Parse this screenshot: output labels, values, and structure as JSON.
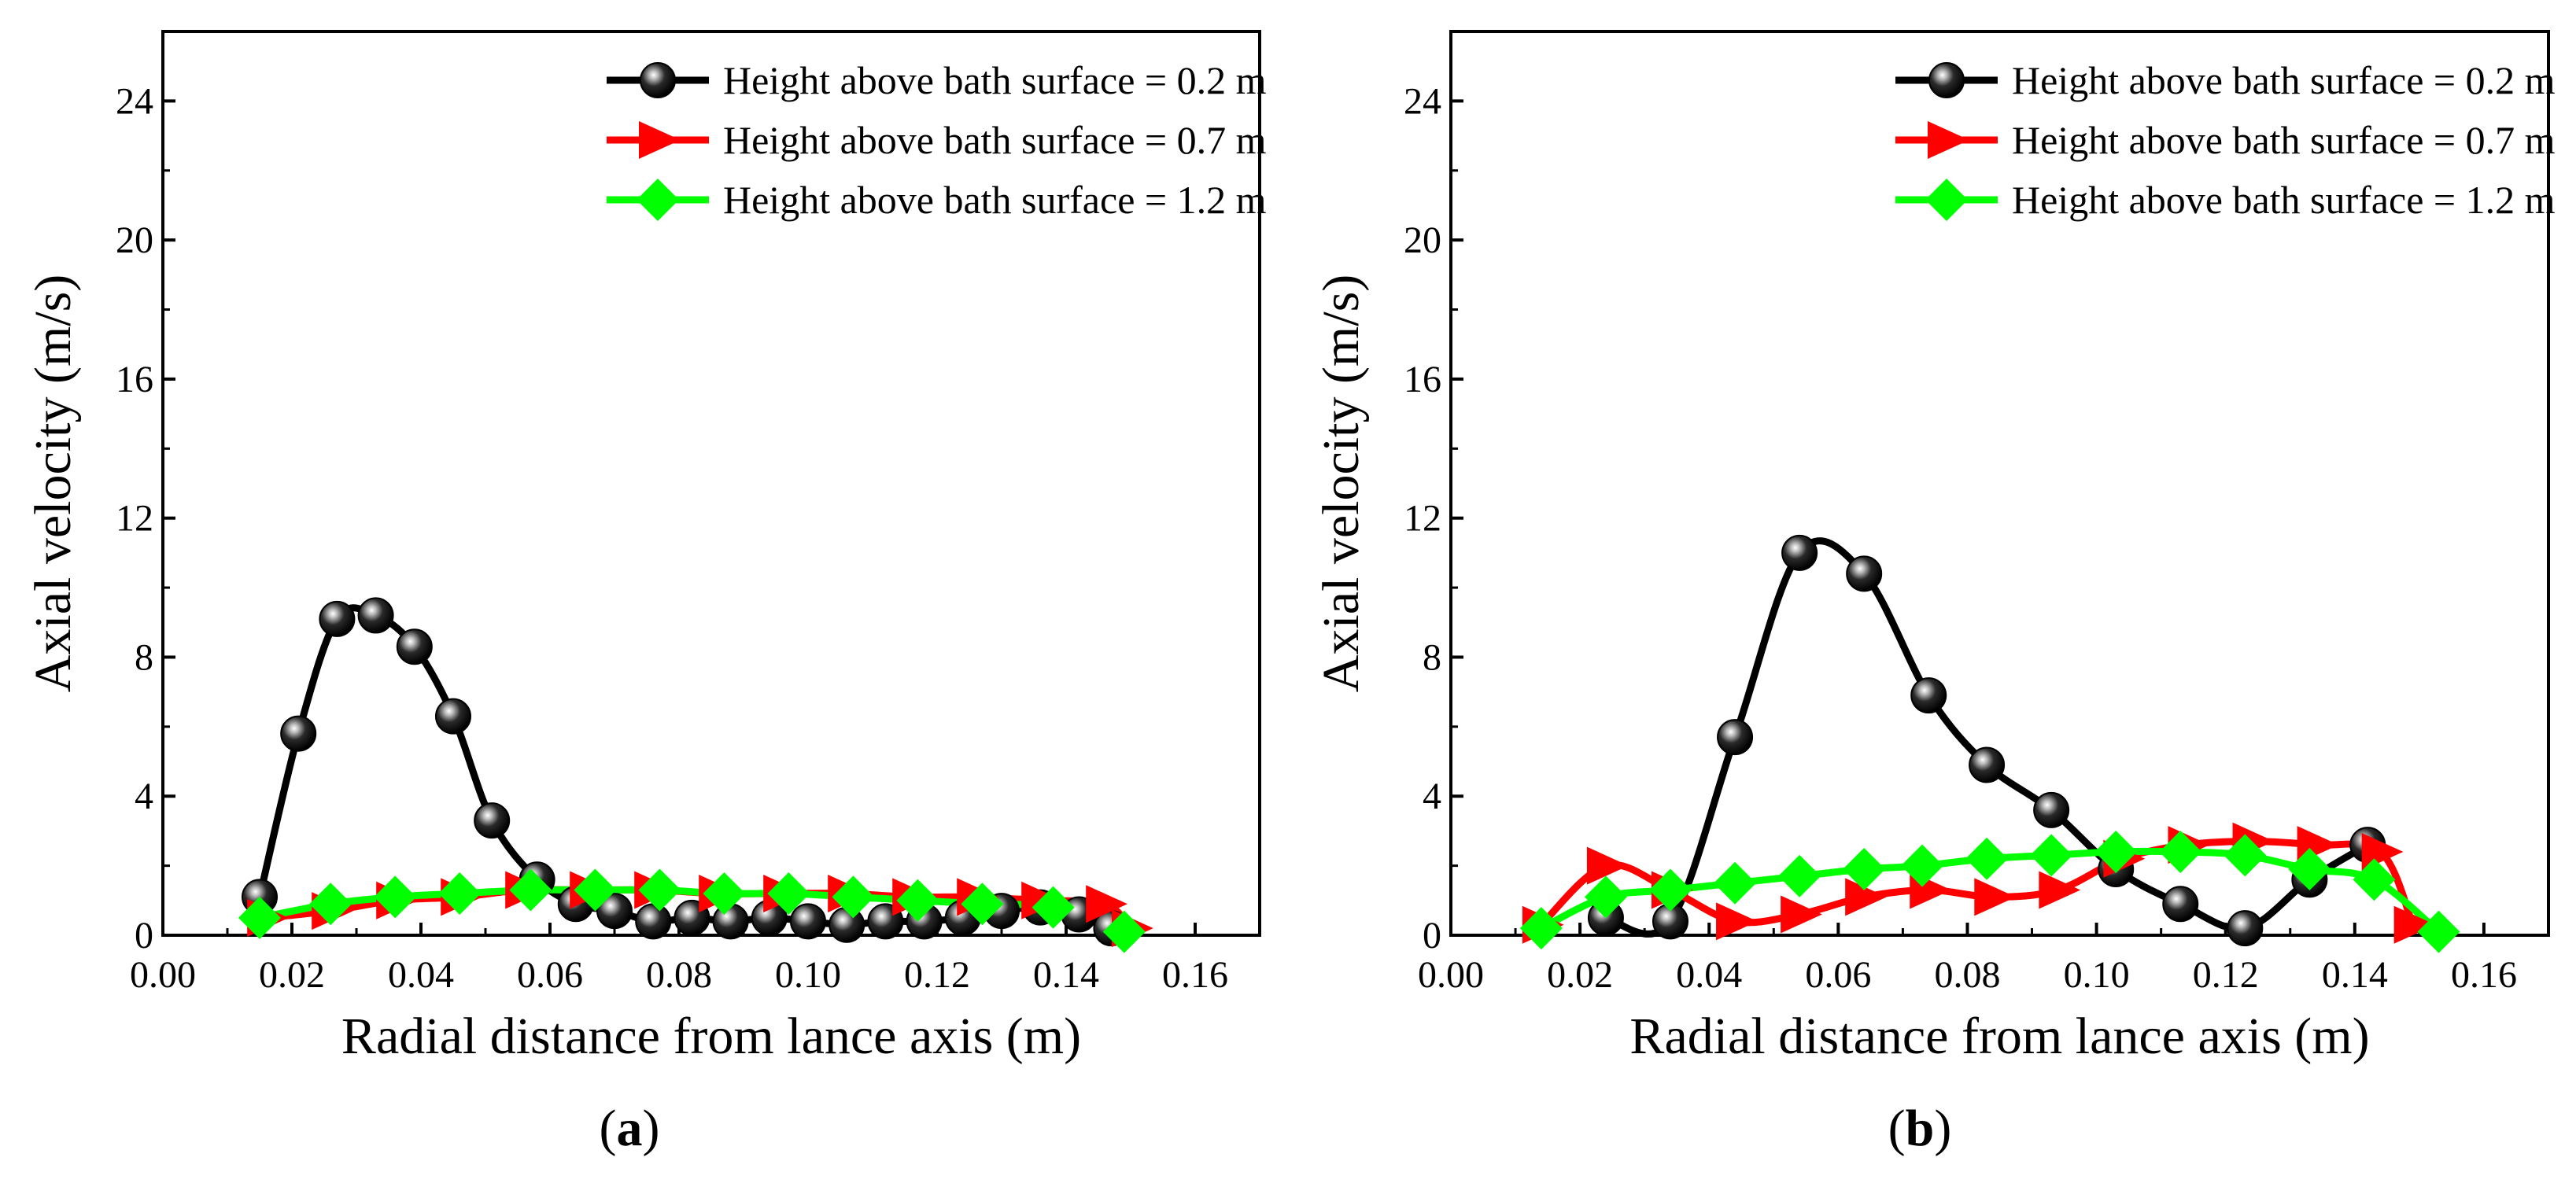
{
  "colors": {
    "series_0.2": "#000000",
    "series_0.7": "#ff0000",
    "series_1.2": "#00ff00",
    "axes": "#000000",
    "background": "#ffffff"
  },
  "chart_data": [
    {
      "type": "line",
      "panel_label": "a",
      "xlabel": "Radial distance from lance axis (m)",
      "ylabel": "Axial velocity (m/s)",
      "xlim": [
        0.0,
        0.17
      ],
      "ylim": [
        0,
        26
      ],
      "xticks": [
        "0.00",
        "0.02",
        "0.04",
        "0.06",
        "0.08",
        "0.10",
        "0.12",
        "0.14",
        "0.16"
      ],
      "yticks": [
        "0",
        "4",
        "8",
        "12",
        "16",
        "20",
        "24"
      ],
      "legend_position": "top-right",
      "grid": false,
      "series": [
        {
          "name": "Height above bath surface = 0.2 m",
          "marker": "sphere",
          "x": [
            0.015,
            0.021,
            0.027,
            0.033,
            0.039,
            0.045,
            0.051,
            0.058,
            0.064,
            0.07,
            0.076,
            0.082,
            0.088,
            0.094,
            0.1,
            0.106,
            0.112,
            0.118,
            0.124,
            0.13,
            0.136,
            0.142,
            0.147
          ],
          "y": [
            1.1,
            5.8,
            9.1,
            9.2,
            8.3,
            6.3,
            3.3,
            1.6,
            0.9,
            0.7,
            0.4,
            0.5,
            0.4,
            0.5,
            0.4,
            0.3,
            0.4,
            0.4,
            0.5,
            0.7,
            0.8,
            0.6,
            0.2
          ]
        },
        {
          "name": "Height above bath surface = 0.7 m",
          "marker": "triangle-right",
          "x": [
            0.016,
            0.026,
            0.036,
            0.046,
            0.056,
            0.066,
            0.076,
            0.086,
            0.096,
            0.106,
            0.116,
            0.126,
            0.136,
            0.146,
            0.15
          ],
          "y": [
            0.5,
            0.7,
            1.0,
            1.1,
            1.3,
            1.3,
            1.3,
            1.2,
            1.2,
            1.2,
            1.1,
            1.1,
            1.0,
            0.9,
            0.2
          ]
        },
        {
          "name": "Height above bath surface = 1.2 m",
          "marker": "diamond",
          "x": [
            0.015,
            0.026,
            0.036,
            0.046,
            0.057,
            0.067,
            0.077,
            0.087,
            0.097,
            0.107,
            0.117,
            0.127,
            0.138,
            0.149
          ],
          "y": [
            0.5,
            0.9,
            1.1,
            1.2,
            1.3,
            1.3,
            1.3,
            1.2,
            1.2,
            1.1,
            1.0,
            0.9,
            0.8,
            0.1
          ]
        }
      ]
    },
    {
      "type": "line",
      "panel_label": "b",
      "xlabel": "Radial distance from lance axis (m)",
      "ylabel": "Axial velocity (m/s)",
      "xlim": [
        0.0,
        0.17
      ],
      "ylim": [
        0,
        26
      ],
      "xticks": [
        "0.00",
        "0.02",
        "0.04",
        "0.06",
        "0.08",
        "0.10",
        "0.12",
        "0.14",
        "0.16"
      ],
      "yticks": [
        "0",
        "4",
        "8",
        "12",
        "16",
        "20",
        "24"
      ],
      "legend_position": "top-right",
      "grid": false,
      "series": [
        {
          "name": "Height above bath surface = 0.2 m",
          "marker": "sphere",
          "x": [
            0.024,
            0.034,
            0.044,
            0.054,
            0.064,
            0.074,
            0.083,
            0.093,
            0.103,
            0.113,
            0.123,
            0.133,
            0.142
          ],
          "y": [
            0.5,
            0.4,
            5.7,
            11.0,
            10.4,
            6.9,
            4.9,
            3.6,
            1.9,
            0.9,
            0.2,
            1.6,
            2.6
          ]
        },
        {
          "name": "Height above bath surface = 0.7 m",
          "marker": "triangle-right",
          "x": [
            0.014,
            0.024,
            0.034,
            0.044,
            0.054,
            0.064,
            0.074,
            0.084,
            0.094,
            0.104,
            0.114,
            0.124,
            0.134,
            0.144,
            0.149
          ],
          "y": [
            0.3,
            2.0,
            1.3,
            0.4,
            0.6,
            1.1,
            1.3,
            1.1,
            1.3,
            2.2,
            2.6,
            2.7,
            2.6,
            2.4,
            0.3
          ]
        },
        {
          "name": "Height above bath surface = 1.2 m",
          "marker": "diamond",
          "x": [
            0.014,
            0.024,
            0.034,
            0.044,
            0.054,
            0.064,
            0.073,
            0.083,
            0.093,
            0.103,
            0.113,
            0.123,
            0.133,
            0.143,
            0.153
          ],
          "y": [
            0.2,
            1.1,
            1.3,
            1.5,
            1.7,
            1.9,
            2.0,
            2.2,
            2.3,
            2.4,
            2.4,
            2.3,
            1.9,
            1.6,
            0.1
          ]
        }
      ]
    }
  ]
}
